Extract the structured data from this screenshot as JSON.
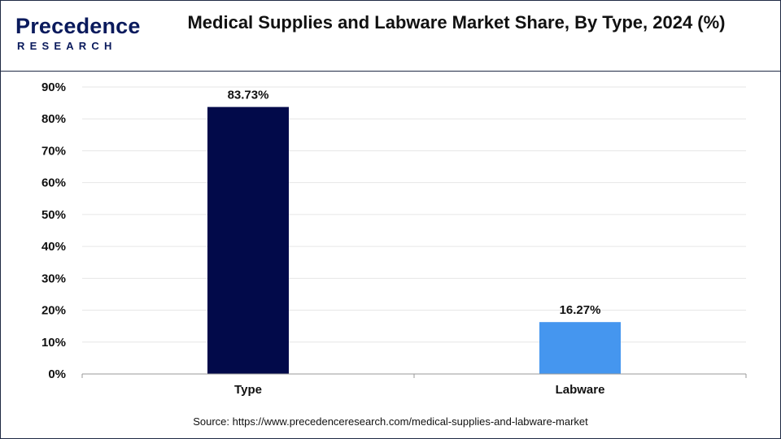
{
  "logo": {
    "word": "Precedence",
    "sub": "RESEARCH"
  },
  "colors": {
    "type_bar": "#020a4a",
    "labware_bar": "#4596ef",
    "brand": "#0a1a5c",
    "grid": "#e6e6e6"
  },
  "chart_data": {
    "type": "bar",
    "title": "Medical Supplies and Labware Market Share, By Type, 2024 (%)",
    "categories": [
      "Type",
      "Labware"
    ],
    "values": [
      83.73,
      16.27
    ],
    "value_labels": [
      "83.73%",
      "16.27%"
    ],
    "ylim": [
      0,
      90
    ],
    "yticks": [
      0,
      10,
      20,
      30,
      40,
      50,
      60,
      70,
      80,
      90
    ],
    "ytick_labels": [
      "0%",
      "10%",
      "20%",
      "30%",
      "40%",
      "50%",
      "60%",
      "70%",
      "80%",
      "90%"
    ],
    "xlabel": "",
    "ylabel": "",
    "grid": true,
    "legend": "none"
  },
  "source": "Source: https://www.precedenceresearch.com/medical-supplies-and-labware-market"
}
